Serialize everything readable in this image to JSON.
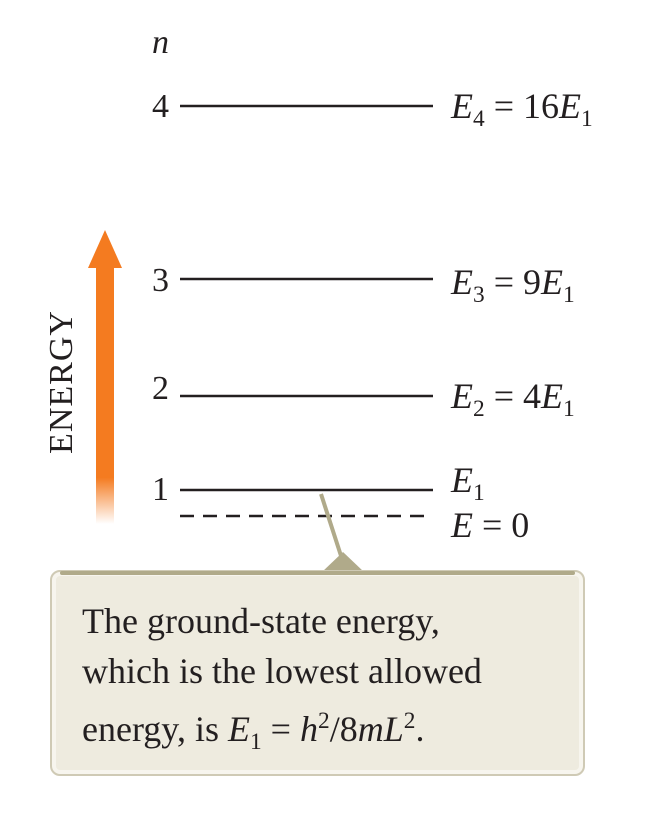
{
  "n_axis_label": "n",
  "axis_label": "ENERGY",
  "levels": [
    {
      "n": "4",
      "sym": "E",
      "sub": "4",
      "rhs": " = 16",
      "rhs_sym": "E",
      "rhs_sub": "1"
    },
    {
      "n": "3",
      "sym": "E",
      "sub": "3",
      "rhs": " = 9",
      "rhs_sym": "E",
      "rhs_sub": "1"
    },
    {
      "n": "2",
      "sym": "E",
      "sub": "2",
      "rhs": " = 4",
      "rhs_sym": "E",
      "rhs_sub": "1"
    },
    {
      "n": "1",
      "sym": "E",
      "sub": "1"
    }
  ],
  "zero_line": {
    "sym": "E",
    "rhs": " = 0"
  },
  "callout": {
    "line1": "The ground-state energy,",
    "line2": "which is the lowest allowed",
    "line3_prefix": "energy, is ",
    "E": "E",
    "E_sub": "1",
    "eq": " = ",
    "h": "h",
    "h_sup": "2",
    "slash": "/8",
    "m": "m",
    "L": "L",
    "L_sup": "2",
    "end": "."
  },
  "colors": {
    "arrow": "#f47b20",
    "line": "#231f20",
    "callout_bg": "#eeebdf",
    "callout_pointer": "#b0aa8a"
  }
}
